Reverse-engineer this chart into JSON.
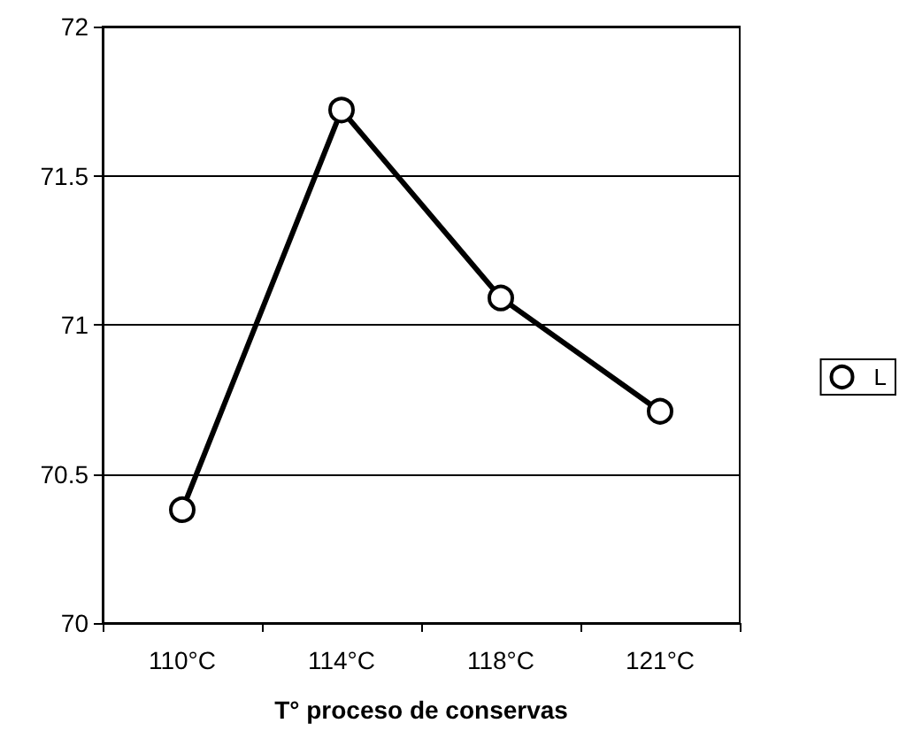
{
  "chart_data": {
    "type": "line",
    "xlabel": "T° proceso de conservas",
    "categories": [
      "110°C",
      "114°C",
      "118°C",
      "121°C"
    ],
    "series": [
      {
        "name": "L",
        "color": "#000000",
        "values": [
          70.38,
          71.72,
          71.09,
          70.71
        ]
      }
    ],
    "ylim": [
      70,
      72
    ],
    "yticks": [
      70,
      70.5,
      71,
      71.5,
      72
    ],
    "grid": "y",
    "legend": "right",
    "marker": "circle",
    "line_style": "solid"
  }
}
